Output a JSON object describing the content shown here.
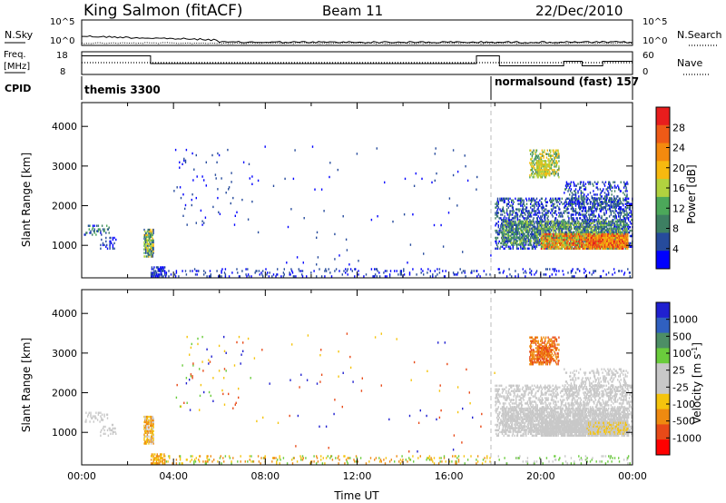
{
  "header": {
    "station": "King Salmon (fitACF)",
    "beam": "Beam 11",
    "date": "22/Dec/2010"
  },
  "colors": {
    "power_scale": [
      "#0000ff",
      "#264b9c",
      "#3d7f62",
      "#4ca85a",
      "#b1d23f",
      "#f7b90f",
      "#f48a0e",
      "#ee5a17",
      "#e81d1d"
    ],
    "velocity_scale": [
      "#2020d0",
      "#3060c0",
      "#4d8e66",
      "#6acc3c",
      "#c8c8c8",
      "#c8c8c8",
      "#f5c40d",
      "#ef8a10",
      "#e84a18",
      "#ff0000"
    ]
  },
  "chart_data": [
    {
      "type": "line",
      "name": "summary-sky-search",
      "left_label": "N.Sky",
      "right_label": "N.Search",
      "left_ticks": [
        "10^5",
        "10^0"
      ],
      "right_ticks": [
        "10^5",
        "10^0"
      ]
    },
    {
      "type": "line",
      "name": "summary-freq-nave",
      "left_label_1": "Freq.",
      "left_label_2": "[MHz]",
      "right_label": "Nave",
      "left_ticks": [
        "18",
        "8"
      ],
      "right_ticks": [
        "60",
        "0"
      ],
      "freq_steps": [
        {
          "t_start": 0.0,
          "t_end": 3.0,
          "level": 0.82
        },
        {
          "t_start": 3.0,
          "t_end": 17.2,
          "level": 0.48
        },
        {
          "t_start": 17.2,
          "t_end": 18.2,
          "level": 0.82
        },
        {
          "t_start": 18.2,
          "t_end": 21.0,
          "level": 0.38
        },
        {
          "t_start": 21.0,
          "t_end": 21.8,
          "level": 0.58
        },
        {
          "t_start": 21.8,
          "t_end": 22.7,
          "level": 0.38
        },
        {
          "t_start": 22.7,
          "t_end": 24.0,
          "level": 0.58
        }
      ]
    },
    {
      "type": "table",
      "name": "cpid",
      "label": "CPID",
      "segments": [
        {
          "text": "themis 3300",
          "t_start": 0,
          "t_end": 18
        },
        {
          "text": "normalsound (fast)  157",
          "t_start": 18,
          "t_end": 24
        }
      ]
    },
    {
      "type": "heatmap",
      "name": "power",
      "ylabel": "Slant Range [km]",
      "colorbar_label": "Power [dB]",
      "colorbar_ticks": [
        "28",
        "24",
        "20",
        "16",
        "12",
        "8",
        "4"
      ],
      "xlim_hours": [
        0,
        24
      ],
      "ylim_km": [
        180,
        4600
      ],
      "yticks": [
        "1000",
        "2000",
        "3000",
        "4000"
      ],
      "blobs": [
        {
          "t0": 0.1,
          "t1": 1.2,
          "r0": 1250,
          "r1": 1500,
          "d": 0.25,
          "c": [
            0,
            1,
            2,
            3
          ]
        },
        {
          "t0": 0.8,
          "t1": 1.5,
          "r0": 900,
          "r1": 1200,
          "d": 0.15,
          "c": [
            0,
            1
          ]
        },
        {
          "t0": 2.7,
          "t1": 3.1,
          "r0": 700,
          "r1": 1400,
          "d": 0.6,
          "c": [
            1,
            2,
            3,
            4,
            5
          ]
        },
        {
          "t0": 3.0,
          "t1": 3.6,
          "r0": 200,
          "r1": 450,
          "d": 0.45,
          "c": [
            0,
            1
          ]
        },
        {
          "t0": 3.5,
          "t1": 17.8,
          "r0": 200,
          "r1": 420,
          "d": 0.1,
          "c": [
            0,
            1
          ]
        },
        {
          "t0": 18.1,
          "t1": 23.9,
          "r0": 200,
          "r1": 420,
          "d": 0.08,
          "c": [
            0,
            1
          ]
        },
        {
          "t0": 18.0,
          "t1": 24.0,
          "r0": 900,
          "r1": 2200,
          "d": 0.3,
          "c": [
            0,
            1,
            2
          ]
        },
        {
          "t0": 18.3,
          "t1": 23.8,
          "r0": 1000,
          "r1": 1600,
          "d": 0.5,
          "c": [
            1,
            2,
            3,
            4
          ]
        },
        {
          "t0": 20.0,
          "t1": 23.8,
          "r0": 900,
          "r1": 1300,
          "d": 0.7,
          "c": [
            3,
            4,
            5,
            6,
            7,
            8
          ]
        },
        {
          "t0": 22.0,
          "t1": 23.8,
          "r0": 950,
          "r1": 1250,
          "d": 0.75,
          "c": [
            5,
            6,
            7,
            8
          ]
        },
        {
          "t0": 19.5,
          "t1": 20.8,
          "r0": 2700,
          "r1": 3400,
          "d": 0.4,
          "c": [
            2,
            3,
            4,
            5
          ]
        },
        {
          "t0": 19.8,
          "t1": 20.4,
          "r0": 2750,
          "r1": 3150,
          "d": 0.6,
          "c": [
            4,
            5
          ]
        },
        {
          "t0": 21.0,
          "t1": 23.8,
          "r0": 1900,
          "r1": 2600,
          "d": 0.2,
          "c": [
            0,
            1,
            2
          ]
        },
        {
          "t0": 4.0,
          "t1": 7.5,
          "r0": 1500,
          "r1": 3400,
          "d": 0.012,
          "c": [
            0,
            1
          ]
        },
        {
          "t0": 7.0,
          "t1": 18.0,
          "r0": 500,
          "r1": 3500,
          "d": 0.003,
          "c": [
            0,
            1
          ]
        }
      ]
    },
    {
      "type": "heatmap",
      "name": "velocity",
      "ylabel": "Slant Range [km]",
      "colorbar_label": "Velocity [m s^-1]",
      "colorbar_ticks": [
        "1000",
        "500",
        "100",
        "25",
        "-25",
        "-100",
        "-500",
        "-1000"
      ],
      "xlabel": "Time UT",
      "xticks": [
        "00:00",
        "04:00",
        "08:00",
        "12:00",
        "16:00",
        "20:00",
        "00:00"
      ],
      "xlim_hours": [
        0,
        24
      ],
      "ylim_km": [
        180,
        4600
      ],
      "yticks": [
        "1000",
        "2000",
        "3000",
        "4000"
      ],
      "blobs": [
        {
          "t0": 0.1,
          "t1": 1.2,
          "r0": 1250,
          "r1": 1500,
          "d": 0.25,
          "c": [
            4,
            5
          ]
        },
        {
          "t0": 0.8,
          "t1": 1.5,
          "r0": 900,
          "r1": 1200,
          "d": 0.15,
          "c": [
            4,
            5
          ]
        },
        {
          "t0": 2.7,
          "t1": 3.1,
          "r0": 700,
          "r1": 1400,
          "d": 0.6,
          "c": [
            4,
            6,
            7
          ]
        },
        {
          "t0": 3.0,
          "t1": 3.6,
          "r0": 200,
          "r1": 450,
          "d": 0.45,
          "c": [
            6,
            7
          ]
        },
        {
          "t0": 3.5,
          "t1": 17.8,
          "r0": 200,
          "r1": 420,
          "d": 0.1,
          "c": [
            3,
            6,
            7
          ]
        },
        {
          "t0": 18.1,
          "t1": 23.9,
          "r0": 200,
          "r1": 420,
          "d": 0.08,
          "c": [
            3,
            4
          ]
        },
        {
          "t0": 18.0,
          "t1": 24.0,
          "r0": 900,
          "r1": 2200,
          "d": 0.3,
          "c": [
            4,
            5
          ]
        },
        {
          "t0": 18.3,
          "t1": 23.8,
          "r0": 1000,
          "r1": 1600,
          "d": 0.5,
          "c": [
            4,
            5
          ]
        },
        {
          "t0": 20.0,
          "t1": 23.8,
          "r0": 900,
          "r1": 1300,
          "d": 0.7,
          "c": [
            4,
            5
          ]
        },
        {
          "t0": 22.0,
          "t1": 23.8,
          "r0": 950,
          "r1": 1250,
          "d": 0.75,
          "c": [
            4,
            5,
            6
          ]
        },
        {
          "t0": 19.5,
          "t1": 20.8,
          "r0": 2700,
          "r1": 3400,
          "d": 0.4,
          "c": [
            7,
            8
          ]
        },
        {
          "t0": 19.8,
          "t1": 20.4,
          "r0": 2750,
          "r1": 3150,
          "d": 0.6,
          "c": [
            7,
            8
          ]
        },
        {
          "t0": 21.0,
          "t1": 23.8,
          "r0": 1900,
          "r1": 2600,
          "d": 0.2,
          "c": [
            4,
            5
          ]
        },
        {
          "t0": 4.0,
          "t1": 7.5,
          "r0": 1500,
          "r1": 3400,
          "d": 0.012,
          "c": [
            0,
            3,
            6,
            8
          ]
        },
        {
          "t0": 7.0,
          "t1": 18.0,
          "r0": 500,
          "r1": 3500,
          "d": 0.003,
          "c": [
            0,
            6,
            8
          ]
        }
      ]
    }
  ]
}
